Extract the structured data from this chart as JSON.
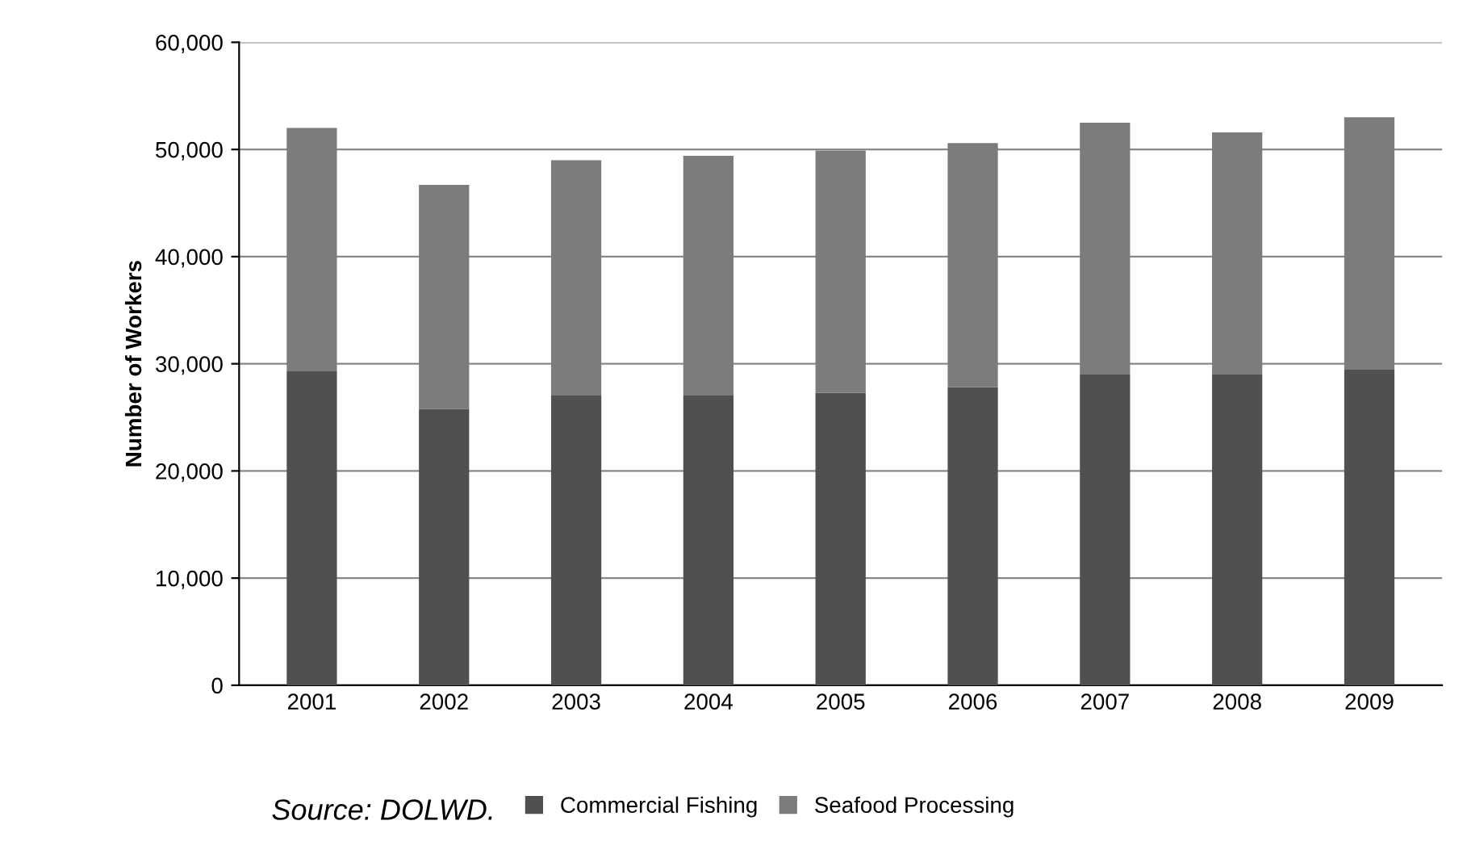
{
  "chart_data": {
    "type": "bar",
    "stacked": true,
    "ylabel": "Number of Workers",
    "categories": [
      "2001",
      "2002",
      "2003",
      "2004",
      "2005",
      "2006",
      "2007",
      "2008",
      "2009"
    ],
    "series": [
      {
        "name": "Commercial Fishing",
        "color": "#505050",
        "values": [
          29300,
          25800,
          27100,
          27100,
          27300,
          27800,
          29000,
          29000,
          29500
        ]
      },
      {
        "name": "Seafood Processing",
        "color": "#7c7c7c",
        "values": [
          22700,
          20900,
          21900,
          22300,
          22600,
          22800,
          23500,
          22600,
          23500
        ]
      }
    ],
    "ylim": [
      0,
      60000
    ],
    "yticks": [
      {
        "value": 0,
        "label": "0"
      },
      {
        "value": 10000,
        "label": "10,000"
      },
      {
        "value": 20000,
        "label": "20,000"
      },
      {
        "value": 30000,
        "label": "30,000"
      },
      {
        "value": 40000,
        "label": "40,000"
      },
      {
        "value": 50000,
        "label": "50,000"
      },
      {
        "value": 60000,
        "label": "60,000"
      }
    ],
    "grid": "y",
    "legend": "bottom",
    "annotations": [
      "Source: DOLWD."
    ]
  }
}
